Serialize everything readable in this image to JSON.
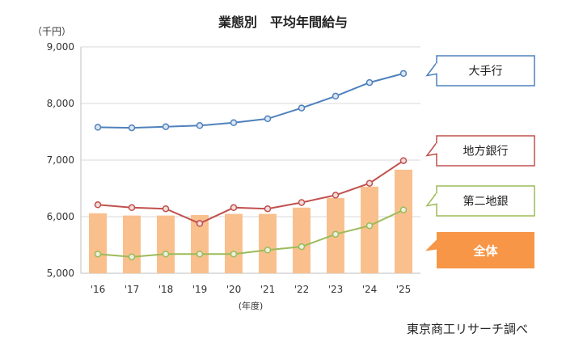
{
  "header": {
    "title": "業態別　平均年間給与",
    "y_unit": "（千円）",
    "x_unit": "(年度)",
    "source": "東京商工リサーチ調べ"
  },
  "chart_data": {
    "type": "bar",
    "title": "業態別　平均年間給与",
    "ylabel": "（千円）",
    "xlabel": "(年度)",
    "ylim": [
      5000,
      9000
    ],
    "yticks": [
      "5,000",
      "6,000",
      "7,000",
      "8,000",
      "9,000"
    ],
    "ytick_values": [
      5000,
      6000,
      7000,
      8000,
      9000
    ],
    "categories": [
      "'16",
      "'17",
      "'18",
      "'19",
      "'20",
      "'21",
      "'22",
      "'23",
      "'24",
      "'25"
    ],
    "grid": true,
    "series": [
      {
        "name": "全体",
        "kind": "bar",
        "color": "#F9C08E",
        "label_fill": "#F79646",
        "values": [
          6060,
          6020,
          6020,
          6030,
          6050,
          6050,
          6160,
          6330,
          6530,
          6830
        ]
      },
      {
        "name": "大手行",
        "kind": "line",
        "color": "#4F81BD",
        "marker_fill": "#DCE6F2",
        "values": [
          7580,
          7570,
          7590,
          7610,
          7660,
          7730,
          7920,
          8130,
          8370,
          8530
        ]
      },
      {
        "name": "地方銀行",
        "kind": "line",
        "color": "#C0504D",
        "marker_fill": "#F2DCDB",
        "values": [
          6210,
          6160,
          6140,
          5880,
          6160,
          6140,
          6250,
          6380,
          6590,
          6990
        ]
      },
      {
        "name": "第二地銀",
        "kind": "line",
        "color": "#9BBB59",
        "marker_fill": "#EBF1DE",
        "values": [
          5340,
          5290,
          5340,
          5340,
          5340,
          5410,
          5470,
          5690,
          5840,
          6120
        ]
      }
    ]
  }
}
